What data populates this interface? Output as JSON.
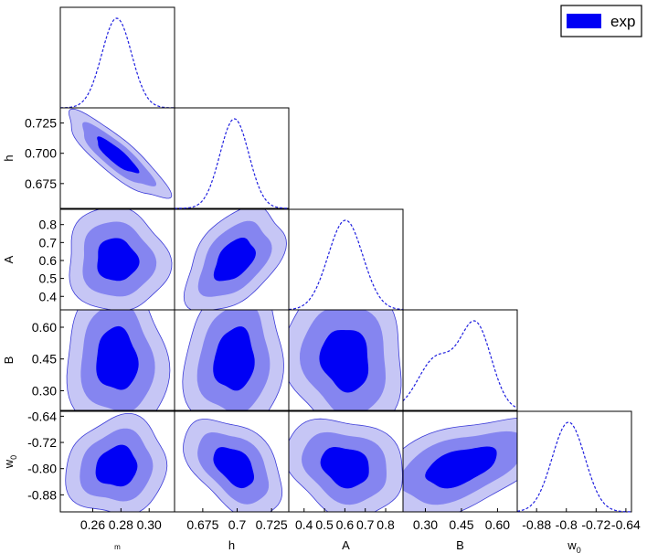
{
  "chart_data": {
    "type": "corner",
    "parameters": [
      {
        "key": "Om",
        "label": "m",
        "ticks": [
          "0.26",
          "0.28",
          "0.30"
        ]
      },
      {
        "key": "h",
        "label": "h",
        "ticks": [
          "0.675",
          "0.7",
          "0.725"
        ],
        "y_ticks": [
          "0.675",
          "0.700",
          "0.725"
        ]
      },
      {
        "key": "A",
        "label": "A",
        "ticks": [
          "0.4",
          "0.5",
          "0.6",
          "0.7",
          "0.8"
        ]
      },
      {
        "key": "B",
        "label": "B",
        "ticks": [
          "0.30",
          "0.45",
          "0.60"
        ]
      },
      {
        "key": "w0",
        "label": "w",
        "label_sub": "0",
        "ticks": [
          "-0.88",
          "-0.8",
          "-0.72",
          "-0.64"
        ],
        "y_ticks": [
          "-0.88",
          "-0.80",
          "-0.72",
          "-0.64"
        ]
      }
    ],
    "ranges": {
      "Om": [
        0.237,
        0.318
      ],
      "h": [
        0.6545,
        0.7375
      ],
      "A": [
        0.325,
        0.885
      ],
      "B": [
        0.207,
        0.682
      ],
      "w0": [
        -0.932,
        -0.625
      ]
    },
    "marginals": {
      "Om": {
        "mean": 0.277,
        "sigma": 0.0105
      },
      "h": {
        "mean": 0.698,
        "sigma": 0.0105
      },
      "A": {
        "mean": 0.603,
        "sigma": 0.085
      },
      "B": {
        "components": [
          {
            "mean": 0.345,
            "sigma": 0.075,
            "weight": 0.55
          },
          {
            "mean": 0.51,
            "sigma": 0.065,
            "weight": 0.9
          }
        ]
      },
      "w0": {
        "mean": -0.794,
        "sigma": 0.044
      }
    },
    "correlations": {
      "h|Om": -0.86,
      "A|Om": -0.05,
      "A|h": 0.45,
      "B|Om": -0.05,
      "B|h": 0.1,
      "B|A": -0.1,
      "w0|Om": 0.1,
      "w0|h": -0.45,
      "w0|A": -0.2,
      "w0|B": 0.5
    },
    "contour_levels": [
      "1 sigma",
      "2 sigma",
      "3 sigma"
    ],
    "colors": {
      "inner": "#0000f5",
      "middle": "#8585f0",
      "outer": "#c6c6f5",
      "outline": "#3c3cd8",
      "marginal_line": "#1f1fdf"
    },
    "grid": false,
    "legend": {
      "position": "top-right",
      "entries": [
        {
          "label": "exp",
          "color": "#0000f5"
        }
      ]
    }
  }
}
